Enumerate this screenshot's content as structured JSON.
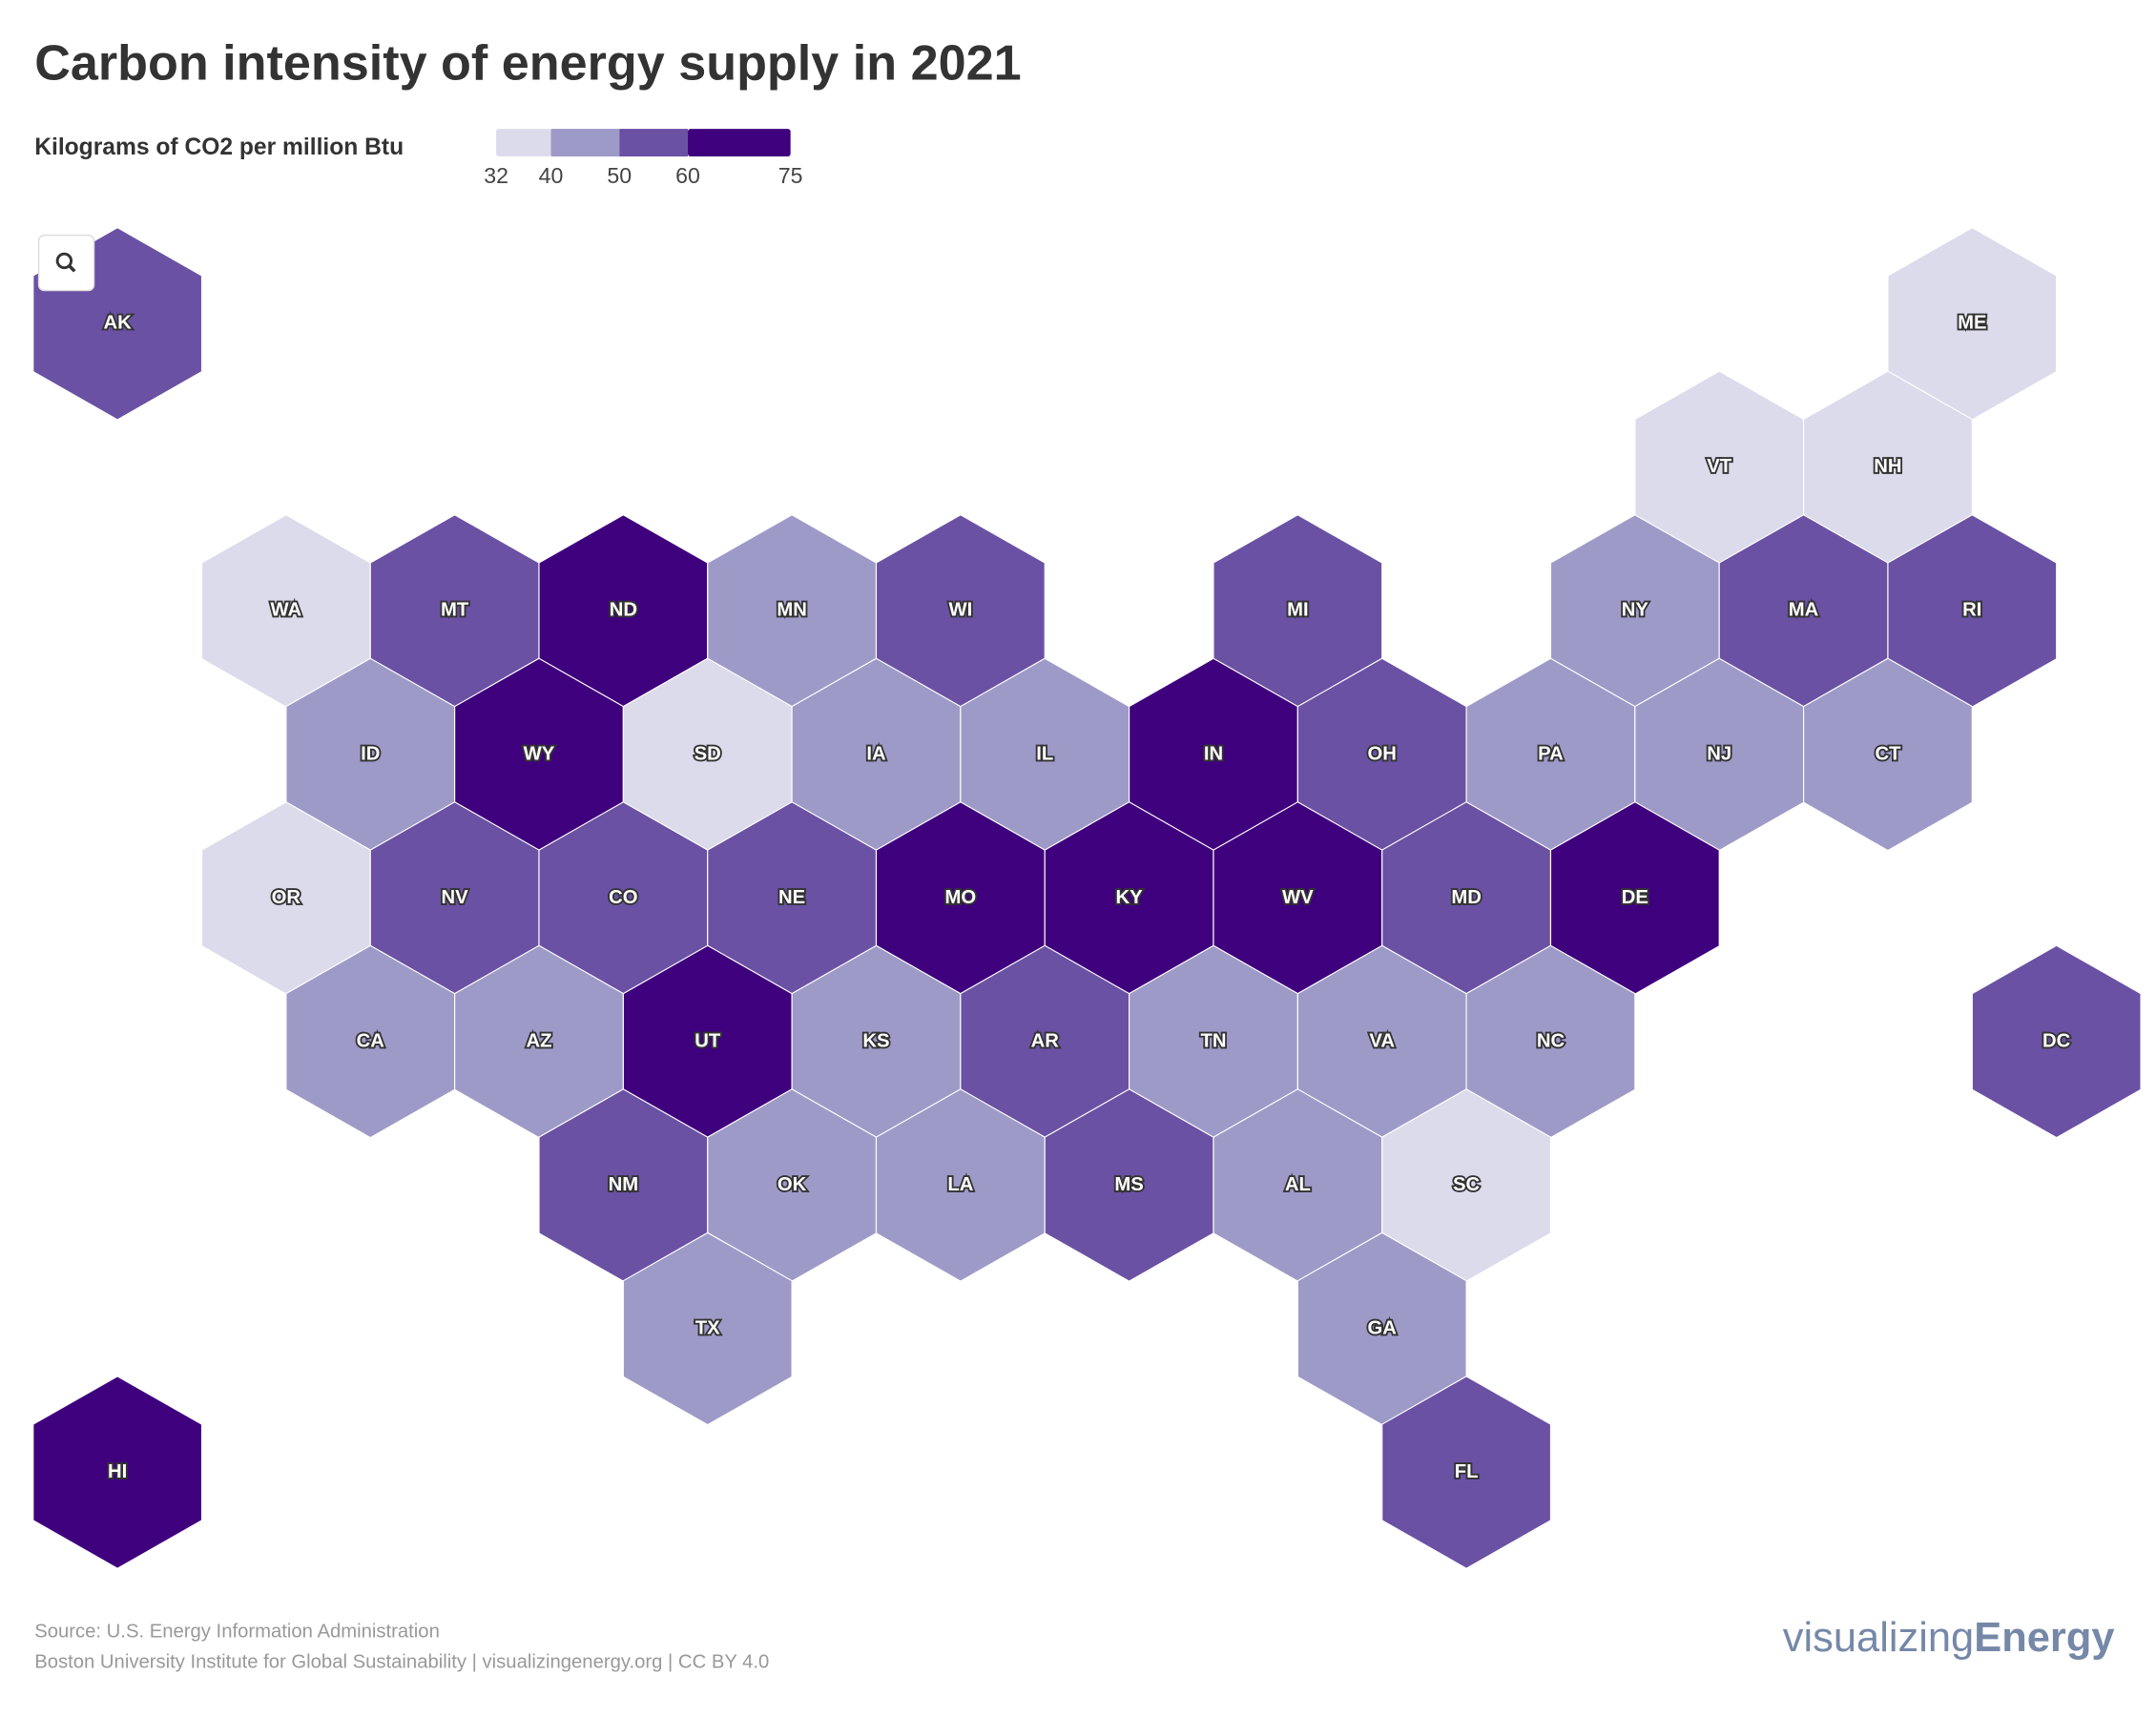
{
  "chart_data": {
    "type": "hexmap",
    "title": "Carbon intensity of energy supply in 2021",
    "subtitle": "Kilograms of CO2 per million Btu",
    "breaks": [
      32,
      40,
      50,
      60,
      75
    ],
    "colors": [
      "#dcdbeb",
      "#9e9ac8",
      "#6a51a3",
      "#3f007d"
    ],
    "states": [
      {
        "name": "AK",
        "value": 55
      },
      {
        "name": "ME",
        "value": 36
      },
      {
        "name": "VT",
        "value": 36
      },
      {
        "name": "NH",
        "value": 36
      },
      {
        "name": "WA",
        "value": 36
      },
      {
        "name": "MT",
        "value": 55
      },
      {
        "name": "ND",
        "value": 67
      },
      {
        "name": "MN",
        "value": 45
      },
      {
        "name": "WI",
        "value": 55
      },
      {
        "name": "MI",
        "value": 55
      },
      {
        "name": "NY",
        "value": 45
      },
      {
        "name": "MA",
        "value": 55
      },
      {
        "name": "RI",
        "value": 55
      },
      {
        "name": "ID",
        "value": 45
      },
      {
        "name": "WY",
        "value": 67
      },
      {
        "name": "SD",
        "value": 36
      },
      {
        "name": "IA",
        "value": 45
      },
      {
        "name": "IL",
        "value": 45
      },
      {
        "name": "IN",
        "value": 67
      },
      {
        "name": "OH",
        "value": 55
      },
      {
        "name": "PA",
        "value": 45
      },
      {
        "name": "NJ",
        "value": 45
      },
      {
        "name": "CT",
        "value": 45
      },
      {
        "name": "OR",
        "value": 36
      },
      {
        "name": "NV",
        "value": 55
      },
      {
        "name": "CO",
        "value": 55
      },
      {
        "name": "NE",
        "value": 55
      },
      {
        "name": "MO",
        "value": 67
      },
      {
        "name": "KY",
        "value": 67
      },
      {
        "name": "WV",
        "value": 67
      },
      {
        "name": "MD",
        "value": 55
      },
      {
        "name": "DE",
        "value": 67
      },
      {
        "name": "CA",
        "value": 45
      },
      {
        "name": "AZ",
        "value": 45
      },
      {
        "name": "UT",
        "value": 67
      },
      {
        "name": "KS",
        "value": 45
      },
      {
        "name": "AR",
        "value": 55
      },
      {
        "name": "TN",
        "value": 45
      },
      {
        "name": "VA",
        "value": 45
      },
      {
        "name": "NC",
        "value": 45
      },
      {
        "name": "DC",
        "value": 55
      },
      {
        "name": "NM",
        "value": 55
      },
      {
        "name": "OK",
        "value": 45
      },
      {
        "name": "LA",
        "value": 45
      },
      {
        "name": "MS",
        "value": 55
      },
      {
        "name": "AL",
        "value": 45
      },
      {
        "name": "SC",
        "value": 36
      },
      {
        "name": "TX",
        "value": 45
      },
      {
        "name": "GA",
        "value": 45
      },
      {
        "name": "HI",
        "value": 67
      },
      {
        "name": "FL",
        "value": 55
      }
    ],
    "source": "Source: U.S. Energy Information Administration",
    "credit": "Boston University Institute for Global Sustainability | visualizingenergy.org | CC BY 4.0",
    "logo": {
      "light": "visualizing",
      "bold": "Energy"
    }
  }
}
